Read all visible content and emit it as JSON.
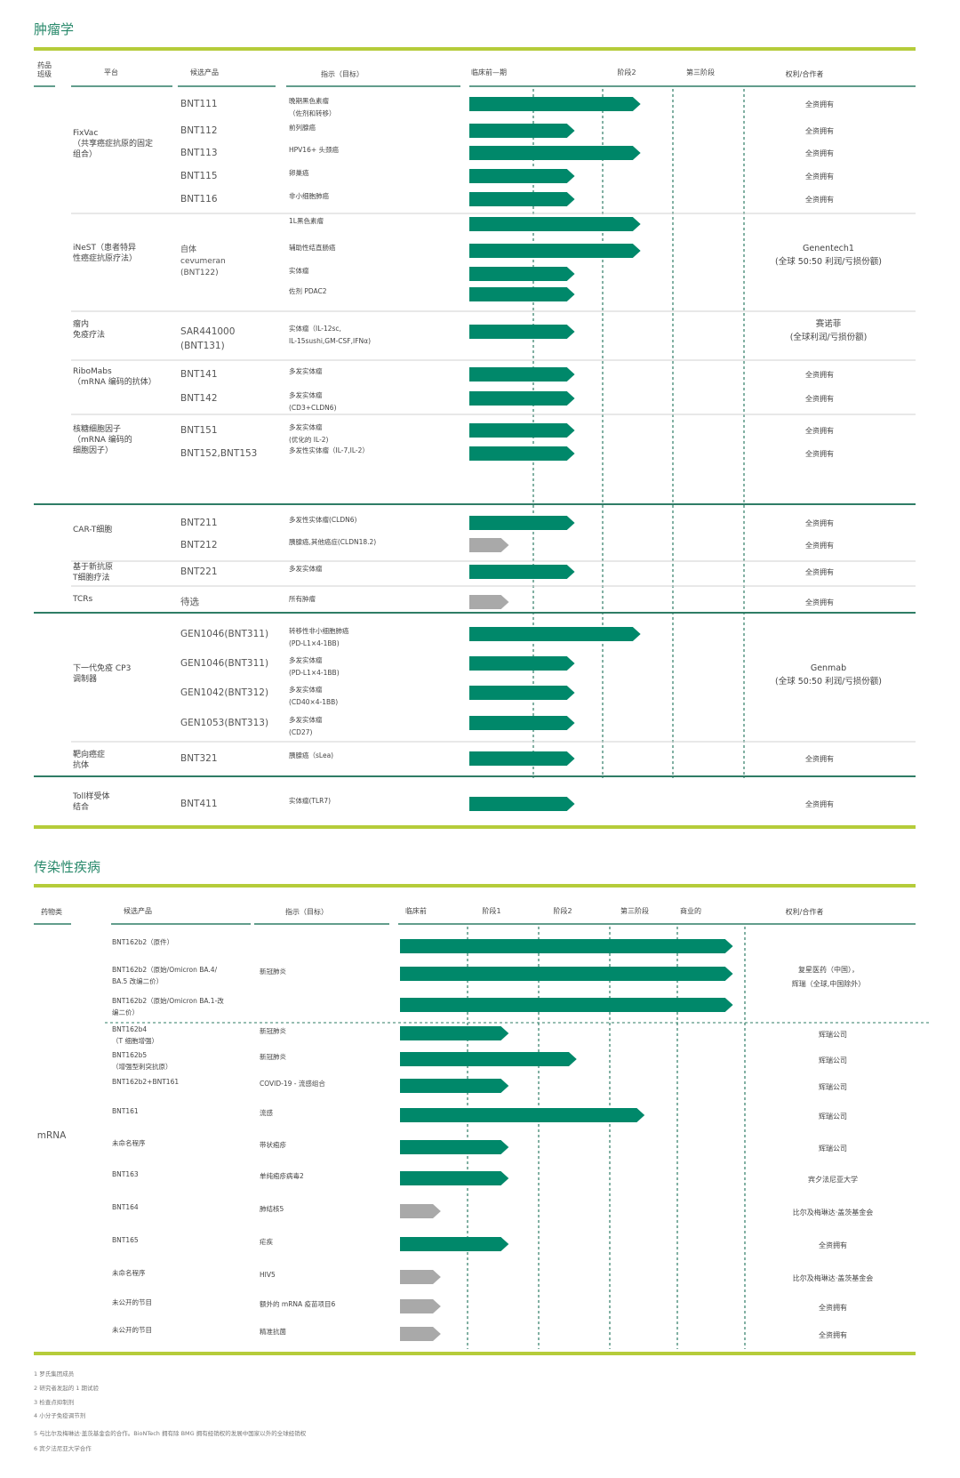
{
  "colors": {
    "accent_line": "#b5cc3a",
    "bar_active": "#00886a",
    "bar_inactive": "#a9a9a9",
    "title": "#2a8a6c",
    "rule": "#2f7d66"
  },
  "chart_data": [
    {
      "type": "gantt-pipeline",
      "title": "肿瘤学",
      "stage_labels": [
        "临床前—期",
        "阶段2",
        "第三阶段"
      ],
      "headers": {
        "class": "药品\n班级",
        "platform": "平台",
        "product": "候选产品",
        "indication": "指示（目标）",
        "rights": "权利/合作者"
      },
      "groups": [
        {
          "class_label": "",
          "platforms": [
            {
              "name": "FixVac\n（共享癌症抗原的固定\n组合）",
              "rights": "",
              "rows": [
                {
                  "product": "BNT111",
                  "indication": "晚期黑色素瘤\n（佐剂和转移）",
                  "stage": 2.6,
                  "status": "active",
                  "rights": "全资拥有"
                },
                {
                  "product": "BNT112",
                  "indication": "前列腺癌",
                  "stage": 1.6,
                  "status": "active",
                  "rights": "全资拥有"
                },
                {
                  "product": "BNT113",
                  "indication": "HPV16+ 头颈癌",
                  "stage": 2.6,
                  "status": "active",
                  "rights": "全资拥有"
                },
                {
                  "product": "BNT115",
                  "indication": "卵巢癌",
                  "stage": 1.6,
                  "status": "active",
                  "rights": "全资拥有"
                },
                {
                  "product": "BNT116",
                  "indication": "非小细胞肺癌",
                  "stage": 1.6,
                  "status": "active",
                  "rights": "全资拥有"
                }
              ]
            },
            {
              "name": "iNeST（患者特异\n性癌症抗原疗法）",
              "product_block": "自体\ncevumeran\n(BNT122)",
              "rights": "Genentech1\n(全球 50:50 利润/亏损份额)",
              "rows": [
                {
                  "product": "",
                  "indication": "1L黑色素瘤",
                  "stage": 2.6,
                  "status": "active"
                },
                {
                  "product": "",
                  "indication": "辅助性结直肠癌",
                  "stage": 2.6,
                  "status": "active"
                },
                {
                  "product": "",
                  "indication": "实体瘤",
                  "stage": 1.6,
                  "status": "active"
                },
                {
                  "product": "",
                  "indication": "佐剂 PDAC2",
                  "stage": 1.6,
                  "status": "active"
                }
              ]
            },
            {
              "name": "瘤内\n免疫疗法",
              "rights": "赛诺菲\n(全球利润/亏损份额)",
              "rows": [
                {
                  "product": "SAR441000\n(BNT131)",
                  "indication": "实体瘤（IL-12sc,\nIL-15sushi,GM-CSF,IFNα)",
                  "stage": 1.6,
                  "status": "active"
                }
              ]
            },
            {
              "name": "RiboMabs\n（mRNA 编码的抗体）",
              "rights": "",
              "rows": [
                {
                  "product": "BNT141",
                  "indication": "多发实体瘤",
                  "stage": 1.6,
                  "status": "active",
                  "rights": "全资拥有"
                },
                {
                  "product": "BNT142",
                  "indication": "多发实体瘤\n(CD3+CLDN6)",
                  "stage": 1.6,
                  "status": "active",
                  "rights": "全资拥有"
                }
              ]
            },
            {
              "name": "核糖细胞因子\n（mRNA 编码的\n细胞因子）",
              "rights": "",
              "rows": [
                {
                  "product": "BNT151",
                  "indication": "多发实体瘤\n(优化的 IL-2)",
                  "stage": 1.6,
                  "status": "active",
                  "rights": "全资拥有"
                },
                {
                  "product": "BNT152,BNT153",
                  "indication": "多发性实体瘤（IL-7,IL-2）",
                  "stage": 1.6,
                  "status": "active",
                  "rights": "全资拥有"
                }
              ]
            }
          ]
        },
        {
          "class_label": "",
          "platforms": [
            {
              "name": "CAR-T细胞",
              "rights": "",
              "rows": [
                {
                  "product": "BNT211",
                  "indication": "多发性实体瘤(CLDN6)",
                  "stage": 1.6,
                  "status": "active",
                  "rights": "全资拥有"
                },
                {
                  "product": "BNT212",
                  "indication": "胰腺癌,其他癌症(CLDN18.2)",
                  "stage": 0.6,
                  "status": "inactive",
                  "rights": "全资拥有"
                }
              ]
            },
            {
              "name": "基于新抗原\nT细胞疗法",
              "rights": "",
              "rows": [
                {
                  "product": "BNT221",
                  "indication": "多发实体瘤",
                  "stage": 1.6,
                  "status": "active",
                  "rights": "全资拥有"
                }
              ]
            },
            {
              "name": "TCRs",
              "rights": "",
              "rows": [
                {
                  "product": "待选",
                  "indication": "所有肿瘤",
                  "stage": 0.6,
                  "status": "inactive",
                  "rights": "全资拥有"
                }
              ]
            }
          ]
        },
        {
          "class_label": "",
          "platforms": [
            {
              "name": "下一代免疫 CP3\n调制器",
              "rights": "Genmab\n(全球 50:50 利润/亏损份额)",
              "rows": [
                {
                  "product": "GEN1046(BNT311)",
                  "indication": "转移性非小细胞肺癌\n(PD-L1×4-1BB)",
                  "stage": 2.6,
                  "status": "active"
                },
                {
                  "product": "GEN1046(BNT311)",
                  "indication": "多发实体瘤\n(PD-L1×4-1BB)",
                  "stage": 1.6,
                  "status": "active"
                },
                {
                  "product": "GEN1042(BNT312)",
                  "indication": "多发实体瘤\n(CD40×4-1BB)",
                  "stage": 1.6,
                  "status": "active"
                },
                {
                  "product": "GEN1053(BNT313)",
                  "indication": "多发实体瘤\n(CD27)",
                  "stage": 1.6,
                  "status": "active"
                }
              ]
            },
            {
              "name": "靶向癌症\n抗体",
              "rights": "",
              "rows": [
                {
                  "product": "BNT321",
                  "indication": "胰腺癌（sLea)",
                  "stage": 1.6,
                  "status": "active",
                  "rights": "全资拥有"
                }
              ]
            }
          ]
        },
        {
          "class_label": "",
          "platforms": [
            {
              "name": "Toll样受体\n结合",
              "rights": "",
              "rows": [
                {
                  "product": "BNT411",
                  "indication": "实体瘤(TLR7)",
                  "stage": 1.6,
                  "status": "active",
                  "rights": "全资拥有"
                }
              ]
            }
          ]
        }
      ]
    },
    {
      "type": "gantt-pipeline",
      "title": "传染性疾病",
      "stage_labels": [
        "临床前",
        "阶段1",
        "阶段2",
        "第三阶段",
        "商业的"
      ],
      "headers": {
        "class": "药物类",
        "product": "候选产品",
        "indication": "指示（目标）",
        "rights": "权利/合作者"
      },
      "class_label": "mRNA",
      "rows": [
        {
          "product": "BNT162b2（原件）",
          "indication": "",
          "stage": 4.9,
          "status": "active"
        },
        {
          "product": "BNT162b2（原始/Omicron BA.4/\nBA.5 改编二价）",
          "indication": "新冠肺炎",
          "stage": 4.9,
          "status": "active"
        },
        {
          "product": "BNT162b2（原始/Omicron BA.1-改\n编二价）",
          "indication": "",
          "stage": 4.9,
          "status": "active"
        },
        {
          "product": "BNT162b4\n（T 细胞增强）",
          "indication": "新冠肺炎",
          "stage": 1.6,
          "status": "active",
          "rights": "辉瑞公司"
        },
        {
          "product": "BNT162b5\n（增强型刺突抗原）",
          "indication": "新冠肺炎",
          "stage": 2.6,
          "status": "active",
          "rights": "辉瑞公司"
        },
        {
          "product": "BNT162b2+BNT161",
          "indication": "COVID-19 - 流感组合",
          "stage": 1.6,
          "status": "active",
          "rights": "辉瑞公司"
        },
        {
          "product": "BNT161",
          "indication": "流感",
          "stage": 3.6,
          "status": "active",
          "rights": "辉瑞公司"
        },
        {
          "product": "未命名程序",
          "indication": "带状疱疹",
          "stage": 1.6,
          "status": "active",
          "rights": "辉瑞公司"
        },
        {
          "product": "BNT163",
          "indication": "单纯疱疹病毒2",
          "stage": 1.6,
          "status": "active",
          "rights": "宾夕法尼亚大学"
        },
        {
          "product": "BNT164",
          "indication": "肺结核5",
          "stage": 0.6,
          "status": "inactive",
          "rights": "比尔及梅琳达·盖茨基金会"
        },
        {
          "product": "BNT165",
          "indication": "疟疾",
          "stage": 1.6,
          "status": "active",
          "rights": "全资拥有"
        },
        {
          "product": "未命名程序",
          "indication": "HIV5",
          "stage": 0.6,
          "status": "inactive",
          "rights": "比尔及梅琳达·盖茨基金会"
        },
        {
          "product": "未公开的节目",
          "indication": "额外的 mRNA 疫苗项目6",
          "stage": 0.6,
          "status": "inactive",
          "rights": "全资拥有"
        },
        {
          "product": "未公开的节目",
          "indication": "精准抗菌",
          "stage": 0.6,
          "status": "inactive",
          "rights": "全资拥有"
        }
      ],
      "group_rights": "复星医药（中国），\n辉瑞（全球,中国除外）"
    }
  ],
  "footnotes": [
    "1 罗氏集团成员",
    "2 研究者发起的 1 期试验",
    "3 检查点抑制剂",
    "4 小分子免疫调节剂",
    "5 与比尔及梅琳达·盖茨基金会的合作。BioNTech 拥有除 BMG 拥有经销权的发展中国家以外的全球经销权",
    "6 宾夕法尼亚大学合作"
  ]
}
